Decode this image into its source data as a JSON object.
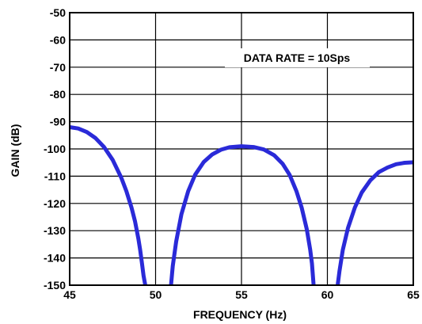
{
  "chart_data": {
    "type": "line",
    "xlabel": "FREQUENCY (Hz)",
    "ylabel": "GAIN (dB)",
    "annotation": "DATA RATE = 10Sps",
    "xlim": [
      45,
      65
    ],
    "ylim": [
      -150,
      -50
    ],
    "x_ticks": [
      "45",
      "50",
      "55",
      "60",
      "65"
    ],
    "y_ticks": [
      "-50",
      "-60",
      "-70",
      "-80",
      "-90",
      "-100",
      "-110",
      "-120",
      "-130",
      "-140",
      "-150"
    ],
    "grid": true,
    "line_color": "#2a2ad8",
    "series": [
      {
        "x": [
          45.0,
          45.5,
          46.0,
          46.5,
          47.0,
          47.5,
          48.0,
          48.3,
          48.6,
          48.8,
          49.0,
          49.1,
          49.2,
          49.3,
          49.4
        ],
        "y": [
          -92.0,
          -92.5,
          -93.8,
          -96.0,
          -99.3,
          -104.0,
          -110.5,
          -115.5,
          -121.5,
          -126.5,
          -133.0,
          -137.0,
          -141.5,
          -146.5,
          -150.0
        ]
      },
      {
        "x": [
          50.9,
          51.0,
          51.2,
          51.5,
          51.9,
          52.3,
          52.8,
          53.3,
          53.8,
          54.3,
          55.0,
          55.7,
          56.3,
          56.9,
          57.4,
          57.8,
          58.2,
          58.5,
          58.8,
          59.0,
          59.1,
          59.2
        ],
        "y": [
          -150.0,
          -143.0,
          -134.0,
          -124.0,
          -115.5,
          -109.5,
          -104.8,
          -102.0,
          -100.3,
          -99.4,
          -99.0,
          -99.3,
          -100.2,
          -102.3,
          -105.5,
          -109.5,
          -115.5,
          -121.5,
          -129.5,
          -137.0,
          -142.0,
          -150.0
        ]
      },
      {
        "x": [
          60.6,
          60.7,
          60.9,
          61.2,
          61.6,
          62.0,
          62.5,
          63.0,
          63.5,
          64.0,
          64.5,
          65.0
        ],
        "y": [
          -150.0,
          -145.0,
          -137.0,
          -129.0,
          -121.5,
          -116.0,
          -111.5,
          -108.5,
          -106.8,
          -105.6,
          -105.1,
          -104.9
        ]
      }
    ]
  }
}
